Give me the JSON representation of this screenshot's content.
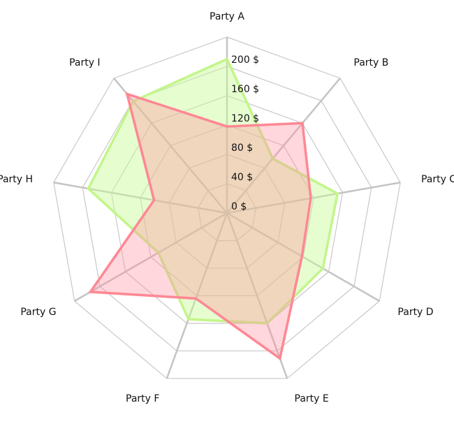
{
  "chart_data": {
    "type": "radar",
    "categories": [
      "Party A",
      "Party B",
      "Party C",
      "Party D",
      "Party E",
      "Party F",
      "Party G",
      "Party H",
      "Party I"
    ],
    "tick_labels": [
      "0 $",
      "40 $",
      "80 $",
      "120 $",
      "160 $",
      "200 $"
    ],
    "rlim": [
      0,
      240
    ],
    "tick_step": 40,
    "grid": true,
    "series": [
      {
        "color": "#c3f58a",
        "fill": "rgba(200,250,150,0.45)",
        "values": [
          210,
          97,
          153,
          151,
          160,
          154,
          108,
          192,
          199
        ]
      },
      {
        "color": "#ff8794",
        "fill": "rgba(255,140,155,0.35)",
        "values": [
          118,
          160,
          116,
          118,
          211,
          124,
          215,
          101,
          212
        ]
      }
    ]
  }
}
